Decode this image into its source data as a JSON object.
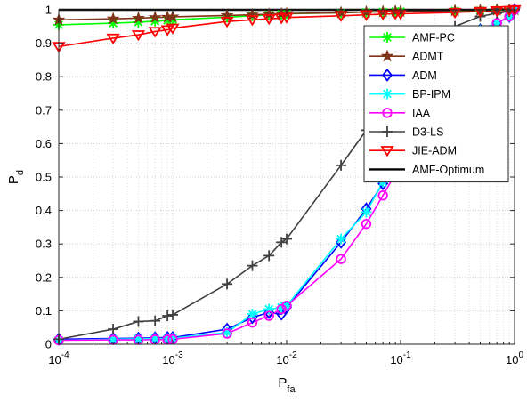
{
  "chart_data": {
    "type": "line",
    "title": "",
    "xlabel": {
      "main": "P",
      "sub": "fa"
    },
    "ylabel": {
      "main": "P",
      "sub": "d"
    },
    "xscale": "log",
    "xlim": [
      0.0001,
      1
    ],
    "ylim": [
      0,
      1
    ],
    "grid": true,
    "legend_position": "right-center",
    "x_ticks": [
      {
        "base": "10",
        "exp": "-4",
        "value": 0.0001
      },
      {
        "base": "10",
        "exp": "-3",
        "value": 0.001
      },
      {
        "base": "10",
        "exp": "-2",
        "value": 0.01
      },
      {
        "base": "10",
        "exp": "-1",
        "value": 0.1
      },
      {
        "base": "10",
        "exp": "0",
        "value": 1
      }
    ],
    "y_ticks": [
      "0",
      "0.1",
      "0.2",
      "0.3",
      "0.4",
      "0.5",
      "0.6",
      "0.7",
      "0.8",
      "0.9",
      "1"
    ],
    "x": [
      0.0001,
      0.0003,
      0.0005,
      0.0007,
      0.0009,
      0.001,
      0.003,
      0.005,
      0.007,
      0.009,
      0.01,
      0.03,
      0.05,
      0.07,
      0.09,
      0.1,
      0.3,
      0.5,
      0.7,
      0.9,
      1
    ],
    "series": [
      {
        "name": "AMF-PC",
        "color": "#00ff00",
        "marker": "asterisk",
        "values": [
          0.955,
          0.96,
          0.963,
          0.966,
          0.968,
          0.97,
          0.978,
          0.982,
          0.985,
          0.987,
          0.988,
          0.991,
          0.993,
          0.994,
          0.995,
          0.995,
          0.997,
          0.998,
          0.999,
          0.999,
          1.0
        ]
      },
      {
        "name": "ADMT",
        "color": "#7f3319",
        "marker": "star",
        "values": [
          0.97,
          0.973,
          0.975,
          0.977,
          0.978,
          0.979,
          0.983,
          0.985,
          0.987,
          0.988,
          0.989,
          0.991,
          0.993,
          0.994,
          0.995,
          0.995,
          0.997,
          0.998,
          0.999,
          0.999,
          1.0
        ]
      },
      {
        "name": "ADM",
        "color": "#0000ff",
        "marker": "diamond",
        "values": [
          0.015,
          0.017,
          0.018,
          0.019,
          0.02,
          0.02,
          0.045,
          0.08,
          0.095,
          0.09,
          0.11,
          0.305,
          0.405,
          0.48,
          0.52,
          0.525,
          0.88,
          0.94,
          0.96,
          0.98,
          1.0
        ]
      },
      {
        "name": "BP-IPM",
        "color": "#00ffff",
        "marker": "asterisk",
        "values": [
          0.012,
          0.015,
          0.016,
          0.017,
          0.017,
          0.018,
          0.035,
          0.09,
          0.105,
          0.11,
          0.115,
          0.315,
          0.395,
          0.485,
          0.52,
          0.525,
          0.88,
          0.94,
          0.96,
          0.98,
          1.0
        ]
      },
      {
        "name": "IAA",
        "color": "#ff00ff",
        "marker": "circle",
        "values": [
          0.012,
          0.013,
          0.013,
          0.014,
          0.014,
          0.015,
          0.032,
          0.065,
          0.085,
          0.105,
          0.115,
          0.255,
          0.36,
          0.445,
          0.51,
          0.525,
          0.86,
          0.93,
          0.96,
          0.98,
          1.0
        ]
      },
      {
        "name": "D3-LS",
        "color": "#404040",
        "marker": "plus",
        "values": [
          0.015,
          0.045,
          0.068,
          0.07,
          0.085,
          0.088,
          0.18,
          0.235,
          0.265,
          0.305,
          0.315,
          0.535,
          0.64,
          0.72,
          0.78,
          0.8,
          0.95,
          0.98,
          0.99,
          0.995,
          1.0
        ]
      },
      {
        "name": "JIE-ADM",
        "color": "#ff0000",
        "marker": "triangle-down",
        "values": [
          0.89,
          0.915,
          0.925,
          0.935,
          0.94,
          0.945,
          0.965,
          0.97,
          0.973,
          0.975,
          0.977,
          0.982,
          0.985,
          0.987,
          0.988,
          0.988,
          0.992,
          0.995,
          0.997,
          0.998,
          1.0
        ]
      },
      {
        "name": "AMF-Optimum",
        "color": "#000000",
        "marker": "none",
        "values": [
          1,
          1,
          1,
          1,
          1,
          1,
          1,
          1,
          1,
          1,
          1,
          1,
          1,
          1,
          1,
          1,
          1,
          1,
          1,
          1,
          1
        ]
      }
    ]
  }
}
